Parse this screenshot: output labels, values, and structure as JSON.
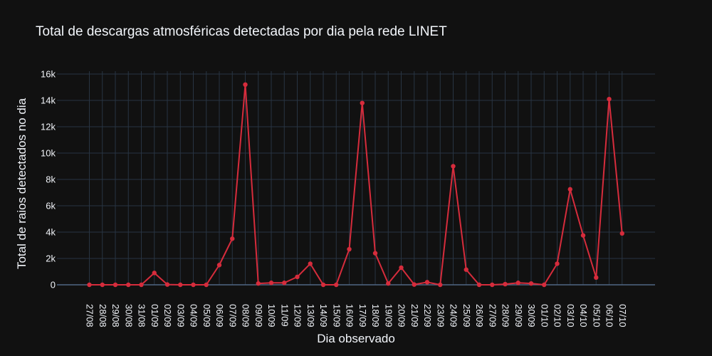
{
  "chart_data": {
    "type": "line",
    "title": "Total de descargas atmosféricas detectadas por dia pela rede LINET",
    "xlabel": "Dia observado",
    "ylabel": "Total de raios detectados no dia",
    "ylim": [
      -1000,
      16500
    ],
    "yticks": [
      0,
      2000,
      4000,
      6000,
      8000,
      10000,
      12000,
      14000,
      16000
    ],
    "ytick_labels": [
      "0",
      "2k",
      "4k",
      "6k",
      "8k",
      "10k",
      "12k",
      "14k",
      "16k"
    ],
    "grid": true,
    "line_color": "#d62c3c",
    "x": [
      "27/08",
      "28/08",
      "29/08",
      "30/08",
      "31/08",
      "01/09",
      "02/09",
      "03/09",
      "04/09",
      "05/09",
      "06/09",
      "07/09",
      "08/09",
      "09/09",
      "10/09",
      "11/09",
      "12/09",
      "13/09",
      "14/09",
      "15/09",
      "16/09",
      "17/09",
      "18/09",
      "19/09",
      "20/09",
      "21/09",
      "22/09",
      "23/09",
      "24/09",
      "25/09",
      "26/09",
      "27/09",
      "28/09",
      "29/09",
      "30/09",
      "01/10",
      "02/10",
      "03/10",
      "04/10",
      "05/10",
      "06/10",
      "07/10"
    ],
    "series": [
      {
        "values": [
          0,
          0,
          0,
          0,
          0,
          900,
          20,
          0,
          0,
          0,
          1500,
          3500,
          15200,
          100,
          150,
          150,
          600,
          1600,
          0,
          0,
          2700,
          13800,
          2400,
          100,
          1300,
          20,
          200,
          0,
          9000,
          1150,
          0,
          0,
          50,
          150,
          100,
          0,
          1600,
          7250,
          3750,
          550,
          14100,
          3900
        ]
      }
    ]
  }
}
